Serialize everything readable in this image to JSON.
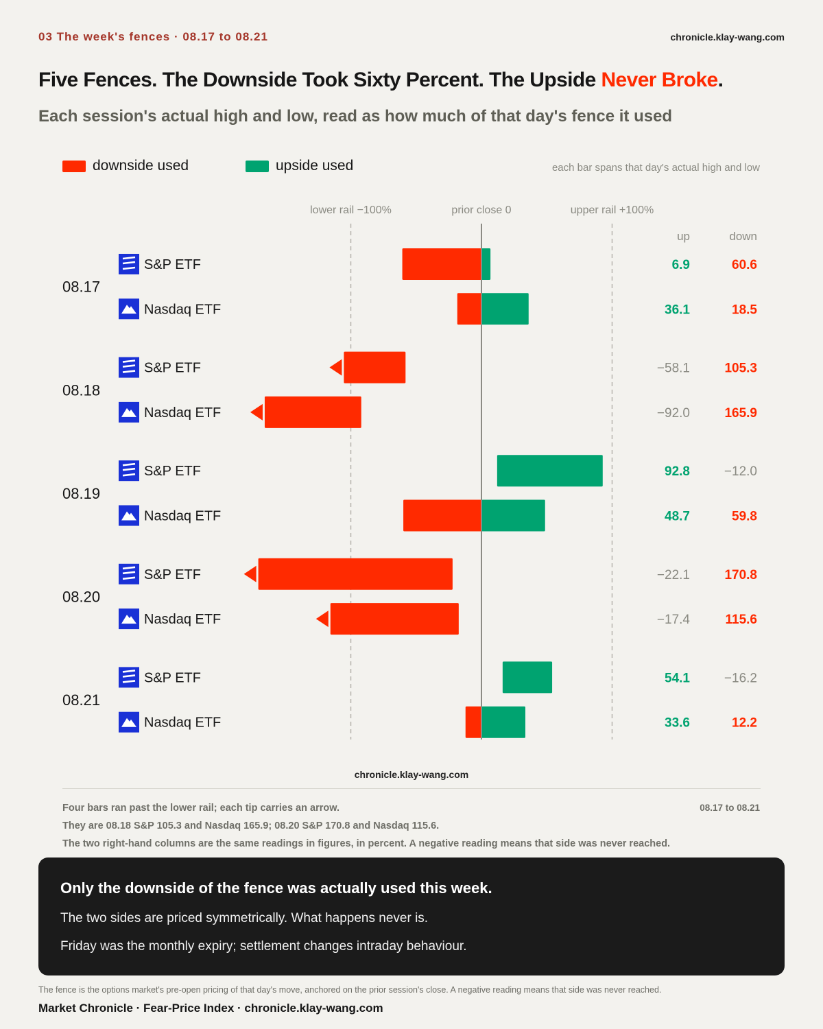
{
  "header": {
    "kicker": "03  The week's fences · 08.17 to 08.21",
    "site": "chronicle.klay-wang.com"
  },
  "headline": {
    "part1": "Five Fences. The Downside Took Sixty Percent. The Upside ",
    "accent": "Never Broke",
    "end": "."
  },
  "subtitle": "Each session's actual high and low, read as how much of that day's fence it used",
  "legend": {
    "downside": "downside used",
    "upside": "upside used",
    "note": "each bar spans that day's actual high and low"
  },
  "colors": {
    "downside": "#ff2a00",
    "upside": "#00a370",
    "muted": "#8a8a82",
    "logo_bg": "#1a31d6"
  },
  "chart_data": {
    "type": "bar",
    "orientation": "horizontal-diverging",
    "axis_labels": {
      "lower": "lower rail −100%",
      "center": "prior close 0",
      "upper": "upper rail +100%"
    },
    "xlim": [
      -200,
      200
    ],
    "reference_lines": [
      -100,
      0,
      100
    ],
    "column_headers": {
      "up": "up",
      "down": "down"
    },
    "series_names": {
      "down": "downside used",
      "up": "upside used"
    },
    "sessions": [
      {
        "date": "08.17",
        "rows": [
          {
            "name": "S&P ETF",
            "logo": "sp-logo-icon",
            "up": 6.9,
            "down": 60.6,
            "up_text": "6.9",
            "down_text": "60.6"
          },
          {
            "name": "Nasdaq ETF",
            "logo": "nasdaq-logo-icon",
            "up": 36.1,
            "down": 18.5,
            "up_text": "36.1",
            "down_text": "18.5"
          }
        ]
      },
      {
        "date": "08.18",
        "rows": [
          {
            "name": "S&P ETF",
            "logo": "sp-logo-icon",
            "up": -58.1,
            "down": 105.3,
            "up_text": "−58.1",
            "down_text": "105.3"
          },
          {
            "name": "Nasdaq ETF",
            "logo": "nasdaq-logo-icon",
            "up": -92.0,
            "down": 165.9,
            "up_text": "−92.0",
            "down_text": "165.9"
          }
        ]
      },
      {
        "date": "08.19",
        "rows": [
          {
            "name": "S&P ETF",
            "logo": "sp-logo-icon",
            "up": 92.8,
            "down": -12.0,
            "up_text": "92.8",
            "down_text": "−12.0"
          },
          {
            "name": "Nasdaq ETF",
            "logo": "nasdaq-logo-icon",
            "up": 48.7,
            "down": 59.8,
            "up_text": "48.7",
            "down_text": "59.8"
          }
        ]
      },
      {
        "date": "08.20",
        "rows": [
          {
            "name": "S&P ETF",
            "logo": "sp-logo-icon",
            "up": -22.1,
            "down": 170.8,
            "up_text": "−22.1",
            "down_text": "170.8"
          },
          {
            "name": "Nasdaq ETF",
            "logo": "nasdaq-logo-icon",
            "up": -17.4,
            "down": 115.6,
            "up_text": "−17.4",
            "down_text": "115.6"
          }
        ]
      },
      {
        "date": "08.21",
        "rows": [
          {
            "name": "S&P ETF",
            "logo": "sp-logo-icon",
            "up": 54.1,
            "down": -16.2,
            "up_text": "54.1",
            "down_text": "−16.2"
          },
          {
            "name": "Nasdaq ETF",
            "logo": "nasdaq-logo-icon",
            "up": 33.6,
            "down": 12.2,
            "up_text": "33.6",
            "down_text": "12.2"
          }
        ]
      }
    ]
  },
  "footer": {
    "site": "chronicle.klay-wang.com",
    "note1": "Four bars ran past the lower rail; each tip carries an arrow.",
    "note2": "They are 08.18 S&P 105.3 and Nasdaq 165.9; 08.20 S&P 170.8 and Nasdaq 115.6.",
    "note3": "The two right-hand columns are the same readings in figures, in percent. A negative reading means that side was never reached.",
    "range": "08.17 to 08.21"
  },
  "callout": {
    "title": "Only the downside of the fence was actually used this week.",
    "line1": "The two sides are priced symmetrically. What happens never is.",
    "line2": "Friday was the monthly expiry; settlement changes intraday behaviour."
  },
  "bottom": {
    "note": "The fence is the options market's pre-open pricing of that day's move, anchored on the prior session's close. A negative reading means that side was never reached.",
    "brand": "Market Chronicle · Fear-Price Index · chronicle.klay-wang.com"
  }
}
